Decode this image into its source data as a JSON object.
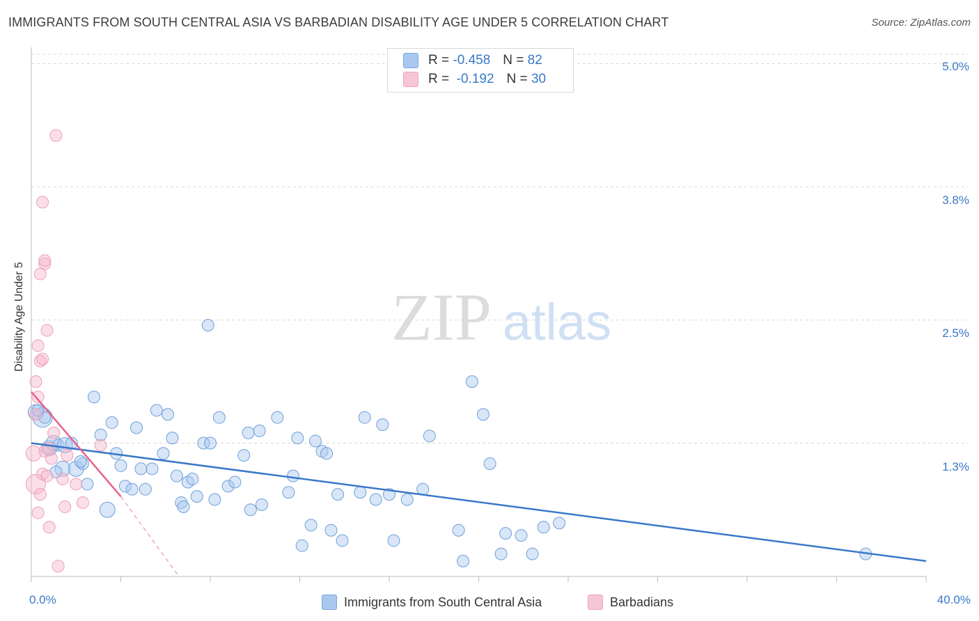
{
  "title": "IMMIGRANTS FROM SOUTH CENTRAL ASIA VS BARBADIAN DISABILITY AGE UNDER 5 CORRELATION CHART",
  "source": "Source: ZipAtlas.com",
  "watermark": {
    "zip": "ZIP",
    "atlas": "atlas"
  },
  "legend": {
    "rows": [
      {
        "r_label": "R =",
        "r_value": "-0.458",
        "n_label": "N =",
        "n_value": "82",
        "color": "#a9c8f0"
      },
      {
        "r_label": "R =",
        "r_value": "-0.192",
        "n_label": "N =",
        "n_value": "30",
        "color": "#f6b8cb"
      }
    ]
  },
  "bottom_legend": {
    "series1": "Immigrants from South Central Asia",
    "series2": "Barbadians"
  },
  "chart_data": {
    "type": "scatter",
    "title": "IMMIGRANTS FROM SOUTH CENTRAL ASIA VS BARBADIAN DISABILITY AGE UNDER 5 CORRELATION CHART",
    "xlabel": "",
    "ylabel": "Disability Age Under 5",
    "xlim": [
      0,
      40
    ],
    "ylim": [
      0,
      5.2
    ],
    "x_tick_labels": [
      "0.0%",
      "40.0%"
    ],
    "y_ticks": [
      1.3,
      2.5,
      3.8,
      5.0
    ],
    "y_tick_labels": [
      "1.3%",
      "2.5%",
      "3.8%",
      "5.0%"
    ],
    "grid": "horizontal dashed",
    "legend_position": "top-center",
    "colors": {
      "blue": "#3a78c9",
      "blue_fill": "#a9c8f0",
      "pink": "#e8608a",
      "pink_fill": "#f6b8cb"
    },
    "series": [
      {
        "name": "Immigrants from South Central Asia",
        "color": "#3a78c9",
        "trend": {
          "x": [
            0,
            40
          ],
          "y": [
            1.3,
            0.15
          ]
        },
        "points": [
          [
            0.2,
            1.6,
            2
          ],
          [
            0.5,
            1.55,
            3
          ],
          [
            0.8,
            1.25,
            2
          ],
          [
            1.0,
            1.3,
            2
          ],
          [
            1.2,
            1.28,
            1
          ],
          [
            1.5,
            1.28,
            2
          ],
          [
            1.8,
            1.3,
            1
          ],
          [
            1.4,
            1.05,
            2
          ],
          [
            2.0,
            1.05,
            2
          ],
          [
            2.3,
            1.1,
            1
          ],
          [
            2.5,
            0.9,
            1
          ],
          [
            2.8,
            1.75,
            1
          ],
          [
            3.1,
            1.38,
            1
          ],
          [
            3.4,
            0.65,
            2
          ],
          [
            3.6,
            1.5,
            1
          ],
          [
            3.8,
            1.2,
            1
          ],
          [
            4.0,
            1.08,
            1
          ],
          [
            4.2,
            0.88,
            1
          ],
          [
            4.5,
            0.85,
            1
          ],
          [
            4.7,
            1.45,
            1
          ],
          [
            4.9,
            1.05,
            1
          ],
          [
            5.1,
            0.85,
            1
          ],
          [
            5.4,
            1.05,
            1
          ],
          [
            5.6,
            1.62,
            1
          ],
          [
            5.9,
            1.2,
            1
          ],
          [
            6.1,
            1.58,
            1
          ],
          [
            6.3,
            1.35,
            1
          ],
          [
            6.5,
            0.98,
            1
          ],
          [
            6.7,
            0.72,
            1
          ],
          [
            6.8,
            0.68,
            1
          ],
          [
            7.0,
            0.92,
            1
          ],
          [
            7.2,
            0.95,
            1
          ],
          [
            7.4,
            0.78,
            1
          ],
          [
            7.7,
            1.3,
            1
          ],
          [
            8.0,
            1.3,
            1
          ],
          [
            8.2,
            0.75,
            1
          ],
          [
            8.4,
            1.55,
            1
          ],
          [
            8.8,
            0.88,
            1
          ],
          [
            9.1,
            0.92,
            1
          ],
          [
            9.5,
            1.18,
            1
          ],
          [
            9.7,
            1.4,
            1
          ],
          [
            9.8,
            0.65,
            1
          ],
          [
            10.2,
            1.42,
            1
          ],
          [
            10.3,
            0.7,
            1
          ],
          [
            11.0,
            1.55,
            1
          ],
          [
            11.5,
            0.82,
            1
          ],
          [
            11.7,
            0.98,
            1
          ],
          [
            11.9,
            1.35,
            1
          ],
          [
            12.1,
            0.3,
            1
          ],
          [
            12.5,
            0.5,
            1
          ],
          [
            12.7,
            1.32,
            1
          ],
          [
            13.0,
            1.22,
            1
          ],
          [
            13.2,
            1.2,
            1
          ],
          [
            13.4,
            0.45,
            1
          ],
          [
            13.7,
            0.8,
            1
          ],
          [
            13.9,
            0.35,
            1
          ],
          [
            14.7,
            0.82,
            1
          ],
          [
            14.9,
            1.55,
            1
          ],
          [
            15.4,
            0.75,
            1
          ],
          [
            15.7,
            1.48,
            1
          ],
          [
            16.0,
            0.8,
            1
          ],
          [
            16.2,
            0.35,
            1
          ],
          [
            16.8,
            0.75,
            1
          ],
          [
            17.5,
            0.85,
            1
          ],
          [
            17.8,
            1.37,
            1
          ],
          [
            19.1,
            0.45,
            1
          ],
          [
            19.3,
            0.15,
            1
          ],
          [
            19.7,
            1.9,
            1
          ],
          [
            20.2,
            1.58,
            1
          ],
          [
            20.5,
            1.1,
            1
          ],
          [
            21.0,
            0.22,
            1
          ],
          [
            21.2,
            0.42,
            1
          ],
          [
            21.9,
            0.4,
            1
          ],
          [
            22.4,
            0.22,
            1
          ],
          [
            22.9,
            0.48,
            1
          ],
          [
            23.6,
            0.52,
            1
          ],
          [
            7.9,
            2.45,
            1
          ],
          [
            37.3,
            0.22,
            1
          ],
          [
            0.6,
            1.55,
            1
          ],
          [
            2.2,
            1.12,
            1
          ],
          [
            1.1,
            1.02,
            1
          ],
          [
            0.3,
            1.62,
            1
          ]
        ]
      },
      {
        "name": "Barbadians",
        "color": "#e8608a",
        "trend": {
          "x": [
            0,
            4.0
          ],
          "y": [
            1.8,
            0.78
          ]
        },
        "trend_dashed": {
          "x": [
            4.0,
            6.6
          ],
          "y": [
            0.78,
            0.0
          ]
        },
        "points": [
          [
            0.1,
            1.2,
            2
          ],
          [
            0.2,
            0.9,
            3
          ],
          [
            0.2,
            1.9,
            1
          ],
          [
            0.3,
            1.75,
            1
          ],
          [
            0.3,
            2.25,
            1
          ],
          [
            0.4,
            2.1,
            1
          ],
          [
            0.4,
            2.95,
            1
          ],
          [
            0.5,
            3.65,
            1
          ],
          [
            0.5,
            2.12,
            1
          ],
          [
            0.6,
            3.05,
            1
          ],
          [
            0.6,
            3.08,
            1
          ],
          [
            0.7,
            2.4,
            1
          ],
          [
            0.3,
            0.62,
            1
          ],
          [
            0.4,
            0.8,
            1
          ],
          [
            0.5,
            1.0,
            1
          ],
          [
            0.6,
            1.22,
            1
          ],
          [
            0.7,
            0.98,
            1
          ],
          [
            0.8,
            0.48,
            1
          ],
          [
            0.9,
            1.15,
            1
          ],
          [
            1.0,
            1.4,
            1
          ],
          [
            1.1,
            4.3,
            1
          ],
          [
            1.2,
            0.1,
            1
          ],
          [
            1.4,
            0.95,
            1
          ],
          [
            1.5,
            0.68,
            1
          ],
          [
            1.6,
            1.18,
            1
          ],
          [
            2.0,
            0.9,
            1
          ],
          [
            2.3,
            0.72,
            1
          ],
          [
            3.1,
            1.28,
            1
          ],
          [
            0.2,
            1.58,
            1
          ],
          [
            0.8,
            1.25,
            1
          ]
        ]
      }
    ]
  }
}
